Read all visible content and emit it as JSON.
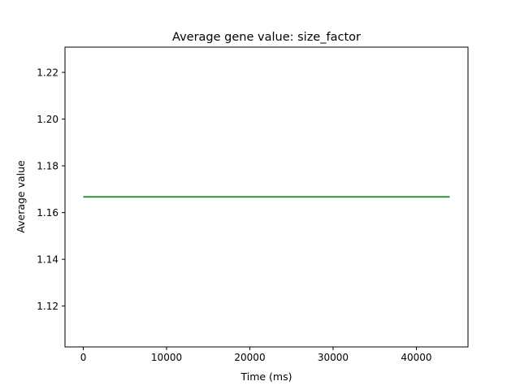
{
  "chart_data": {
    "type": "line",
    "title": "Average gene value: size_factor",
    "xlabel": "Time (ms)",
    "ylabel": "Average value",
    "xlim": [
      -2200,
      46200
    ],
    "ylim": [
      1.1025,
      1.2308
    ],
    "x_ticks": [
      0,
      10000,
      20000,
      30000,
      40000
    ],
    "x_tick_labels": [
      "0",
      "10000",
      "20000",
      "30000",
      "40000"
    ],
    "y_ticks": [
      1.12,
      1.14,
      1.16,
      1.18,
      1.2,
      1.22
    ],
    "y_tick_labels": [
      "1.12",
      "1.14",
      "1.16",
      "1.18",
      "1.20",
      "1.22"
    ],
    "grid": false,
    "series": [
      {
        "color": "#008000",
        "x": [
          0,
          44000
        ],
        "y": [
          1.1667,
          1.1667
        ]
      }
    ]
  }
}
